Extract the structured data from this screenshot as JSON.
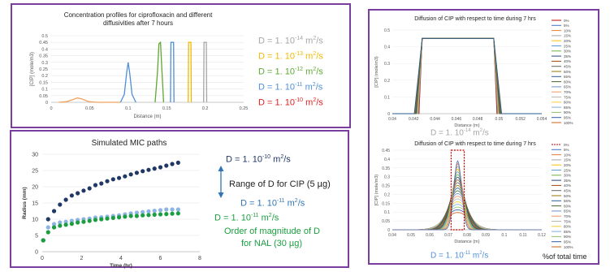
{
  "panels": {
    "profiles": {
      "title_line1": "Concentration profiles for ciprofloxacin and different",
      "title_line2": "diffusivities after 7 hours",
      "xlabel": "Distance (m)",
      "ylabel": "[CIP] (mole/m3)",
      "legend": [
        {
          "base": "D = 1. 10",
          "exp": "-14",
          "unit": " m",
          "unit_exp": "2",
          "unit_tail": "/s",
          "color": "#a6a6a6"
        },
        {
          "base": "D = 1. 10",
          "exp": "-13",
          "unit": " m",
          "unit_exp": "2",
          "unit_tail": "/s",
          "color": "#f2b800"
        },
        {
          "base": "D = 1. 10",
          "exp": "-12",
          "unit": " m",
          "unit_exp": "2",
          "unit_tail": "/s",
          "color": "#5ea832"
        },
        {
          "base": "D = 1. 10",
          "exp": "-11",
          "unit": " m",
          "unit_exp": "2",
          "unit_tail": "/s",
          "color": "#4f8fd8"
        },
        {
          "base": "D = 1. 10",
          "exp": "-10",
          "unit": " m",
          "unit_exp": "2",
          "unit_tail": "/s",
          "color": "#e32020"
        }
      ]
    },
    "mic": {
      "title": "Simulated MIC paths",
      "xlabel": "Time (hr)",
      "ylabel": "Radius (mm)",
      "anno_top": {
        "base": "D = 1. 10",
        "exp": "-10",
        "unit": " m",
        "unit_exp": "2",
        "unit_tail": "/s",
        "color": "#1f3864"
      },
      "anno_range": "Range of D for CIP (5 µg)",
      "anno_mid": {
        "base": "D = 1. 10",
        "exp": "-11",
        "unit": " m",
        "unit_exp": "2",
        "unit_tail": "/s",
        "color": "#2e75b6"
      },
      "anno_low": {
        "base": "D = 1. 10",
        "exp": "-11",
        "unit": " m",
        "unit_exp": "2",
        "unit_tail": "/s",
        "color": "#1a9e3f"
      },
      "anno_order_line1": "Order of magnitude of D",
      "anno_order_line2": "for NAL (30 µg)",
      "order_color": "#1a9e3f"
    },
    "diff_top": {
      "title": "Diffusion of CIP with respect to time during 7 hrs",
      "xlabel": "Distance (m)",
      "ylabel": "[CIP] (mole/m3)",
      "caption": {
        "base": "D = 1. 10",
        "exp": "-14",
        "unit": " m",
        "unit_exp": "2",
        "unit_tail": "/s"
      }
    },
    "diff_bottom": {
      "title": "Diffusion of CIP with respect to time during 7 hrs",
      "xlabel": "Distance (m)",
      "ylabel": "[CIP] (mole/m3)",
      "caption": {
        "base": "D = 1. 10",
        "exp": "-11",
        "unit": " m",
        "unit_exp": "2",
        "unit_tail": "/s"
      },
      "caption_color": "#4f8fd8",
      "pct_note": "%of total time"
    },
    "pct_legend": [
      "0%",
      "5%",
      "10%",
      "15%",
      "20%",
      "25%",
      "30%",
      "35%",
      "40%",
      "45%",
      "50%",
      "55%",
      "60%",
      "65%",
      "70%",
      "75%",
      "80%",
      "85%",
      "90%",
      "95%",
      "100%"
    ]
  },
  "chart_data": [
    {
      "type": "line",
      "xlabel": "Distance (m)",
      "ylabel": "[CIP] (mole/m3)",
      "xlim": [
        0,
        0.25
      ],
      "ylim": [
        0,
        0.5
      ],
      "xticks": [
        "0",
        "0.05",
        "0.1",
        "0.15",
        "0.2",
        "0.25"
      ],
      "yticks": [
        "0",
        "0.05",
        "0.1",
        "0.15",
        "0.2",
        "0.25",
        "0.3",
        "0.35",
        "0.4",
        "0.45",
        "0.5"
      ],
      "series": [
        {
          "color": "#f2a25c",
          "x": [
            0.01,
            0.02,
            0.028,
            0.034,
            0.04,
            0.048,
            0.06,
            0.09
          ],
          "values": [
            0,
            0.005,
            0.02,
            0.033,
            0.025,
            0.006,
            0,
            0
          ]
        },
        {
          "color": "#4f8fd8",
          "x": [
            0.09,
            0.095,
            0.098,
            0.1,
            0.102,
            0.105,
            0.11
          ],
          "values": [
            0,
            0.06,
            0.22,
            0.3,
            0.22,
            0.06,
            0
          ]
        },
        {
          "color": "#5ea832",
          "x": [
            0.135,
            0.138,
            0.14,
            0.142,
            0.144,
            0.146
          ],
          "values": [
            0,
            0.22,
            0.44,
            0.45,
            0.22,
            0
          ]
        },
        {
          "color": "#4f8fd8",
          "x": [
            0.155,
            0.1555,
            0.1575,
            0.159,
            0.1595
          ],
          "values": [
            0,
            0.45,
            0.45,
            0.45,
            0
          ]
        },
        {
          "color": "#f2b800",
          "x": [
            0.178,
            0.1785,
            0.18,
            0.1815,
            0.182
          ],
          "values": [
            0,
            0.45,
            0.45,
            0.45,
            0
          ]
        },
        {
          "color": "#a6a6a6",
          "x": [
            0.198,
            0.1985,
            0.2,
            0.2015,
            0.202
          ],
          "values": [
            0,
            0.45,
            0.45,
            0.45,
            0
          ]
        }
      ]
    },
    {
      "type": "scatter",
      "title": "Simulated MIC paths",
      "xlabel": "Time (hr)",
      "ylabel": "Radius (mm)",
      "xlim": [
        0,
        8
      ],
      "ylim": [
        0,
        30
      ],
      "xticks": [
        "0",
        "2",
        "4",
        "6",
        "8"
      ],
      "yticks": [
        "0",
        "5",
        "10",
        "15",
        "20",
        "25",
        "30"
      ],
      "series": [
        {
          "color": "#203864",
          "x": [
            0.05,
            0.3,
            0.6,
            0.9,
            1.2,
            1.5,
            1.8,
            2.1,
            2.4,
            2.7,
            3.0,
            3.3,
            3.6,
            3.9,
            4.2,
            4.5,
            4.8,
            5.1,
            5.4,
            5.7,
            6.0,
            6.3,
            6.6,
            6.9
          ],
          "values": [
            3.5,
            10,
            12.5,
            14.5,
            16,
            17.3,
            18,
            18.8,
            19.5,
            20.5,
            21,
            21.7,
            22.3,
            22.7,
            23.2,
            23.8,
            24.3,
            24.8,
            25.2,
            25.6,
            26,
            26.5,
            27,
            27.4
          ]
        },
        {
          "color": "#8db4e2",
          "x": [
            0.3,
            0.6,
            0.9,
            1.2,
            1.5,
            1.8,
            2.1,
            2.4,
            2.7,
            3.0,
            3.3,
            3.6,
            3.9,
            4.2,
            4.5,
            4.8,
            5.1,
            5.4,
            5.7,
            6.0,
            6.3,
            6.6,
            6.9
          ],
          "values": [
            7.5,
            8.5,
            9,
            9.2,
            9.5,
            9.8,
            10,
            10.2,
            10.5,
            10.6,
            10.8,
            11,
            11.2,
            11.5,
            11.8,
            12,
            12.2,
            12.4,
            12.6,
            12.8,
            13,
            13,
            13
          ]
        },
        {
          "color": "#1a9e3f",
          "x": [
            0.05,
            0.3,
            0.6,
            0.9,
            1.2,
            1.5,
            1.8,
            2.1,
            2.4,
            2.7,
            3.0,
            3.3,
            3.6,
            3.9,
            4.2,
            4.5,
            4.8,
            5.1,
            5.4,
            5.7,
            6.0,
            6.3,
            6.6,
            6.9
          ],
          "values": [
            3.5,
            6,
            7.5,
            8,
            8.3,
            8.6,
            9,
            9.2,
            9.5,
            9.8,
            10,
            10.2,
            10.4,
            10.6,
            10.8,
            11,
            11,
            11.2,
            11.3,
            11.4,
            11.5,
            11.6,
            11.7,
            11.8
          ]
        }
      ]
    },
    {
      "type": "line",
      "title": "Diffusion of CIP with respect to time during 7 hrs",
      "xlabel": "Distance (m)",
      "ylabel": "[CIP] (mole/m3)",
      "xlim": [
        0.04,
        0.054
      ],
      "ylim": [
        0,
        0.5
      ],
      "xticks": [
        "0.04",
        "0.042",
        "0.044",
        "0.046",
        "0.048",
        "0.05",
        "0.052",
        "0.054"
      ],
      "yticks": [
        "0",
        "0.1",
        "0.2",
        "0.3",
        "0.4",
        "0.5"
      ],
      "plateau": {
        "x_start": 0.0428,
        "x_end": 0.0495,
        "value": 0.45
      }
    },
    {
      "type": "line",
      "title": "Diffusion of CIP with respect to time during 7 hrs",
      "xlabel": "Distance (m)",
      "ylabel": "[CIP] (mole/m3)",
      "xlim": [
        0.04,
        0.12
      ],
      "ylim": [
        0,
        0.45
      ],
      "xticks": [
        "0.04",
        "0.05",
        "0.06",
        "0.07",
        "0.08",
        "0.09",
        "0.1",
        "0.11",
        "0.12"
      ],
      "yticks": [
        "0",
        "0.05",
        "0.1",
        "0.15",
        "0.2",
        "0.25",
        "0.3",
        "0.35",
        "0.4",
        "0.45"
      ],
      "peaks": {
        "center": 0.075,
        "final_peak": 0.39,
        "initial_width": 0.005
      }
    }
  ]
}
